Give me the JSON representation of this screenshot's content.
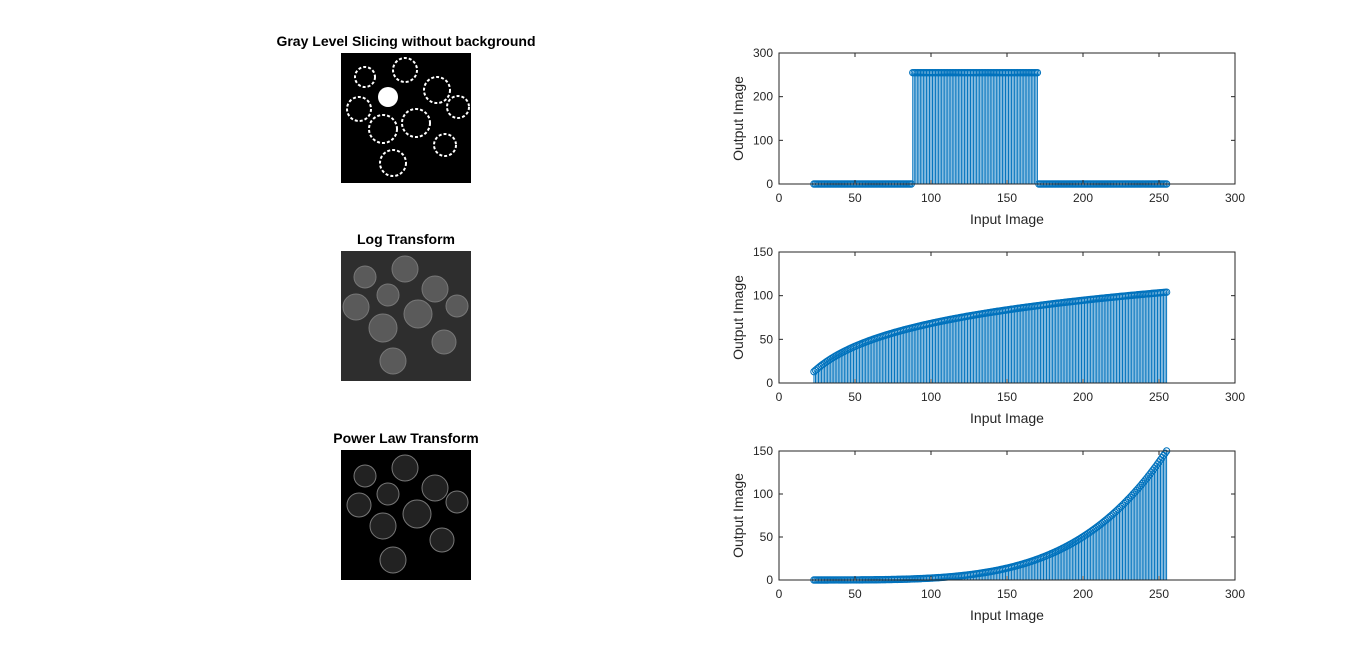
{
  "panels": [
    {
      "title": "Gray Level Slicing without background"
    },
    {
      "title": "Log Transform"
    },
    {
      "title": "Power Law Transform"
    }
  ],
  "colors": {
    "series": "#0072bd",
    "axis": "#262626"
  },
  "chart_data": [
    {
      "type": "stem",
      "xlabel": "Input Image",
      "ylabel": "Output Image",
      "xlim": [
        0,
        300
      ],
      "ylim": [
        0,
        300
      ],
      "xticks": [
        0,
        50,
        100,
        150,
        200,
        250,
        300
      ],
      "yticks": [
        0,
        100,
        200,
        300
      ],
      "x_range": [
        23,
        255
      ],
      "function": "slice",
      "slice_low": 88,
      "slice_high": 170,
      "slice_value": 255
    },
    {
      "type": "stem",
      "xlabel": "Input Image",
      "ylabel": "Output Image",
      "xlim": [
        0,
        300
      ],
      "ylim": [
        0,
        150
      ],
      "xticks": [
        0,
        50,
        100,
        150,
        200,
        250,
        300
      ],
      "yticks": [
        0,
        50,
        100,
        150
      ],
      "x_range": [
        23,
        255
      ],
      "function": "log",
      "y_start": 13,
      "y_end": 104
    },
    {
      "type": "stem",
      "xlabel": "Input Image",
      "ylabel": "Output Image",
      "xlim": [
        0,
        300
      ],
      "ylim": [
        0,
        150
      ],
      "xticks": [
        0,
        50,
        100,
        150,
        200,
        250,
        300
      ],
      "yticks": [
        0,
        50,
        100,
        150
      ],
      "x_range": [
        23,
        255
      ],
      "function": "power",
      "y_end": 150
    }
  ]
}
